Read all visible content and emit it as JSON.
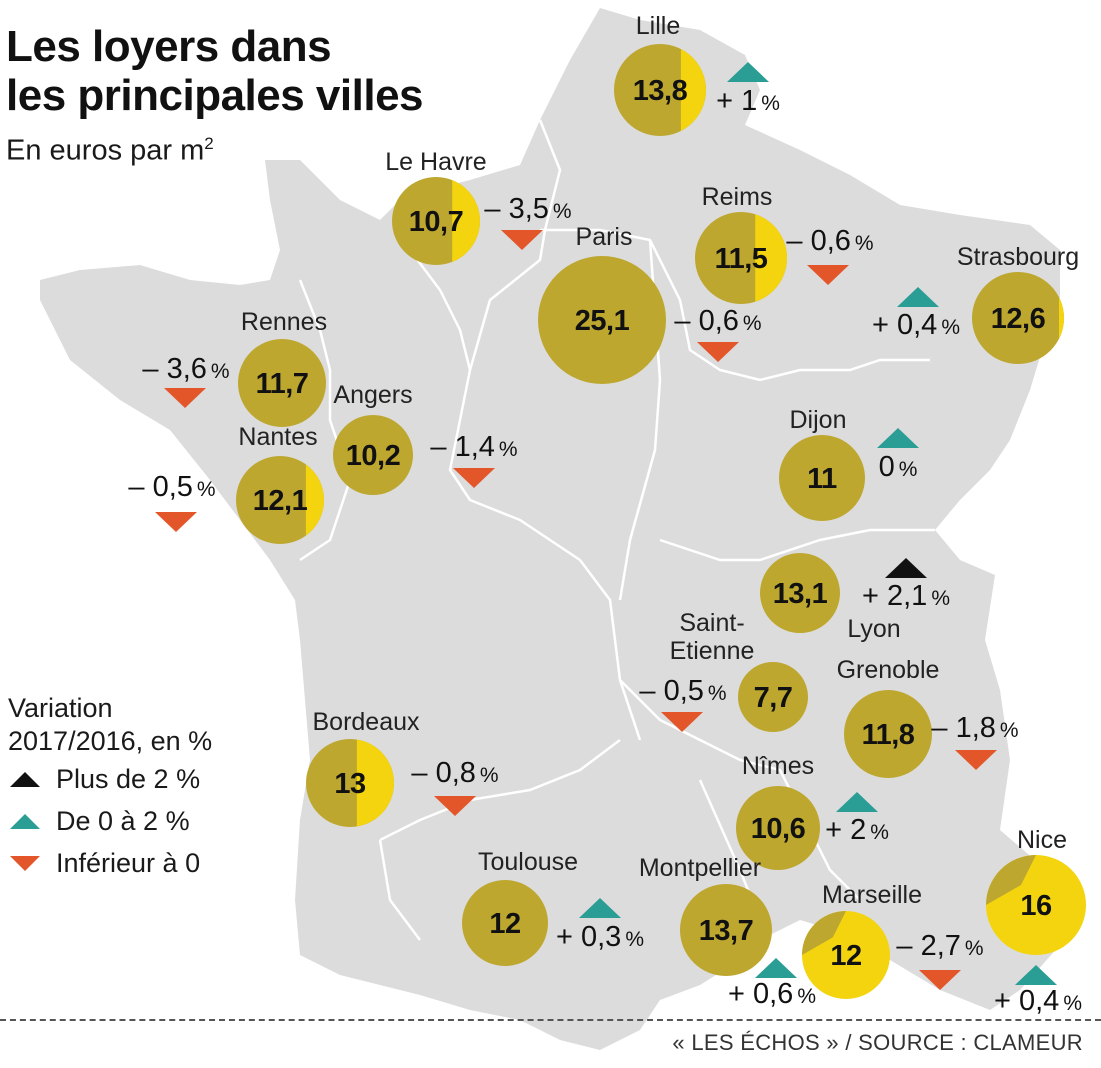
{
  "title_line1": "Les loyers dans",
  "title_line2": "les principales villes",
  "subtitle": "En euros par m",
  "subtitle_sup": "2",
  "legend": {
    "title_line1": "Variation",
    "title_line2": "2017/2016, en %",
    "items": [
      {
        "label": "Plus de 2 %",
        "symbol": "triangle-up",
        "color": "#111111"
      },
      {
        "label": "De 0 à 2 %",
        "symbol": "triangle-up",
        "color": "#2a9d95"
      },
      {
        "label": "Inférieur à 0",
        "symbol": "triangle-down",
        "color": "#e2562a"
      }
    ]
  },
  "source": "« LES ÉCHOS » / SOURCE : CLAMEUR",
  "colors": {
    "land": "#dcdcdc",
    "borders": "#ffffff",
    "circle": "#bda72f",
    "circle_highlight": "#f3d40f",
    "up_strong": "#111111",
    "up": "#2a9d95",
    "down": "#e2562a"
  },
  "cities": [
    {
      "name": "Lille",
      "value": "13,8",
      "variation": "+ 1",
      "trend": "up"
    },
    {
      "name": "Le Havre",
      "value": "10,7",
      "variation": "– 3,5",
      "trend": "down"
    },
    {
      "name": "Reims",
      "value": "11,5",
      "variation": "– 0,6",
      "trend": "down"
    },
    {
      "name": "Paris",
      "value": "25,1",
      "variation": "– 0,6",
      "trend": "down"
    },
    {
      "name": "Strasbourg",
      "value": "12,6",
      "variation": "+ 0,4",
      "trend": "up"
    },
    {
      "name": "Rennes",
      "value": "11,7",
      "variation": "– 3,6",
      "trend": "down"
    },
    {
      "name": "Angers",
      "value": "10,2",
      "variation": "– 1,4",
      "trend": "down"
    },
    {
      "name": "Nantes",
      "value": "12,1",
      "variation": "– 0,5",
      "trend": "down"
    },
    {
      "name": "Dijon",
      "value": "11",
      "variation": "0",
      "trend": "up"
    },
    {
      "name": "Lyon",
      "value": "13,1",
      "variation": "+ 2,1",
      "trend": "up_strong"
    },
    {
      "name": "Saint-Etienne",
      "value": "7,7",
      "variation": "– 0,5",
      "trend": "down"
    },
    {
      "name": "Grenoble",
      "value": "11,8",
      "variation": "– 1,8",
      "trend": "down"
    },
    {
      "name": "Bordeaux",
      "value": "13",
      "variation": "– 0,8",
      "trend": "down"
    },
    {
      "name": "Nîmes",
      "value": "10,6",
      "variation": "+ 2",
      "trend": "up"
    },
    {
      "name": "Toulouse",
      "value": "12",
      "variation": "+ 0,3",
      "trend": "up"
    },
    {
      "name": "Montpellier",
      "value": "13,7",
      "variation": "+ 0,6",
      "trend": "up"
    },
    {
      "name": "Marseille",
      "value": "12",
      "variation": "– 2,7",
      "trend": "down"
    },
    {
      "name": "Nice",
      "value": "16",
      "variation": "+ 0,4",
      "trend": "up"
    }
  ]
}
